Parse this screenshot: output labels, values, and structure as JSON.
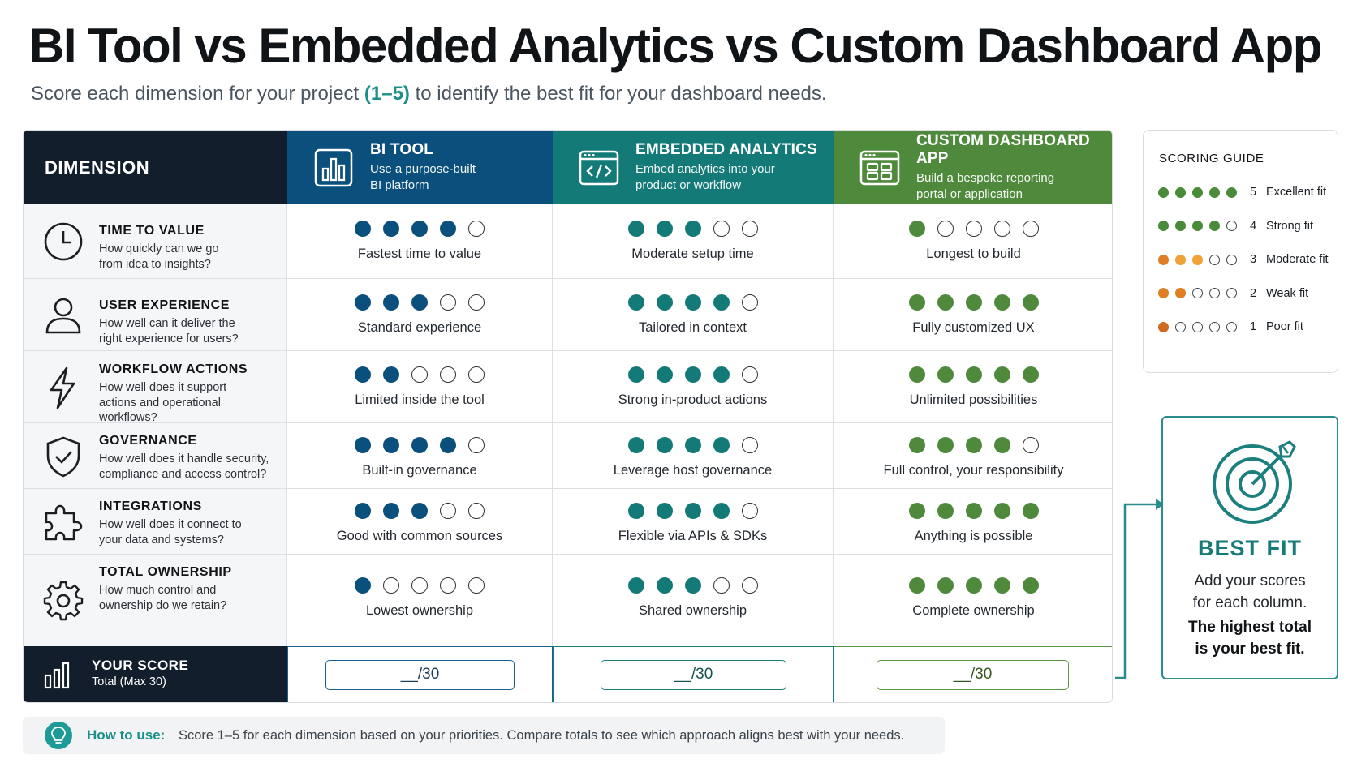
{
  "title": "BI Tool vs Embedded Analytics vs Custom Dashboard App",
  "subtitle": {
    "before": "Score each dimension for your project ",
    "accent": "(1–5)",
    "after": " to identify the best fit for your dashboard needs."
  },
  "colors": {
    "dark": "#121e2c",
    "bi": "#0b4f7c",
    "embedded": "#137a77",
    "custom": "#4f8a3c",
    "accent": "#1b8f8a",
    "guide_green": "#4a8b3a",
    "guide_orange_light": "#f0a238",
    "guide_orange": "#de7f26",
    "guide_orange_dark": "#cf6a1e"
  },
  "header": {
    "dimension": "DIMENSION",
    "bi": {
      "title": "BI TOOL",
      "desc_1": "Use a purpose-built",
      "desc_2": "BI platform",
      "icon": "bar-chart-icon"
    },
    "embedded": {
      "title": "EMBEDDED ANALYTICS",
      "desc_1": "Embed analytics into your",
      "desc_2": "product or workflow",
      "icon": "code-window-icon"
    },
    "custom": {
      "title": "CUSTOM DASHBOARD APP",
      "desc_1": "Build a bespoke reporting",
      "desc_2": "portal or application",
      "icon": "dashboard-window-icon"
    }
  },
  "rows": [
    {
      "name": "TIME TO VALUE",
      "q1": "How quickly can we go",
      "q2": "from idea to insights?",
      "q3": "",
      "icon": "clock-icon",
      "bi": {
        "score": 4,
        "label": "Fastest time to value"
      },
      "embedded": {
        "score": 3,
        "label": "Moderate setup time"
      },
      "custom": {
        "score": 1,
        "label": "Longest to build"
      }
    },
    {
      "name": "USER EXPERIENCE",
      "q1": "How well can it deliver the",
      "q2": "right experience for users?",
      "q3": "",
      "icon": "user-icon",
      "bi": {
        "score": 3,
        "label": "Standard experience"
      },
      "embedded": {
        "score": 4,
        "label": "Tailored in context"
      },
      "custom": {
        "score": 5,
        "label": "Fully customized UX"
      }
    },
    {
      "name": "WORKFLOW ACTIONS",
      "q1": "How well does it support",
      "q2": "actions and operational",
      "q3": "workflows?",
      "icon": "lightning-icon",
      "bi": {
        "score": 2,
        "label": "Limited inside the tool"
      },
      "embedded": {
        "score": 4,
        "label": "Strong in-product actions"
      },
      "custom": {
        "score": 5,
        "label": "Unlimited possibilities"
      }
    },
    {
      "name": "GOVERNANCE",
      "q1": "How well does it handle security,",
      "q2": "compliance and access control?",
      "q3": "",
      "icon": "shield-check-icon",
      "bi": {
        "score": 4,
        "label": "Built-in governance"
      },
      "embedded": {
        "score": 4,
        "label": "Leverage host governance"
      },
      "custom": {
        "score": 4,
        "label": "Full control, your responsibility"
      }
    },
    {
      "name": "INTEGRATIONS",
      "q1": "How well does it connect to",
      "q2": "your data and systems?",
      "q3": "",
      "icon": "puzzle-icon",
      "bi": {
        "score": 3,
        "label": "Good with common sources"
      },
      "embedded": {
        "score": 4,
        "label": "Flexible via APIs & SDKs"
      },
      "custom": {
        "score": 5,
        "label": "Anything is possible"
      }
    },
    {
      "name": "TOTAL OWNERSHIP",
      "q1": "How much control and",
      "q2": "ownership do we retain?",
      "q3": "",
      "icon": "gear-icon",
      "bi": {
        "score": 1,
        "label": "Lowest ownership"
      },
      "embedded": {
        "score": 3,
        "label": "Shared ownership"
      },
      "custom": {
        "score": 5,
        "label": "Complete ownership"
      }
    }
  ],
  "score_row": {
    "title": "YOUR SCORE",
    "subtitle": "Total (Max 30)",
    "icon": "bar-chart-icon",
    "bi": "__/30",
    "embedded": "__/30",
    "custom": "__/30"
  },
  "guide": {
    "title": "SCORING GUIDE",
    "levels": [
      {
        "score": 5,
        "label": "Excellent fit",
        "color": "#4a8b3a"
      },
      {
        "score": 4,
        "label": "Strong fit",
        "color": "#4a8b3a"
      },
      {
        "score": 3,
        "label": "Moderate fit",
        "color": "#f0a238"
      },
      {
        "score": 2,
        "label": "Weak fit",
        "color": "#de7f26"
      },
      {
        "score": 1,
        "label": "Poor fit",
        "color": "#cf6a1e"
      }
    ]
  },
  "best_fit": {
    "title": "BEST FIT",
    "line1": "Add your scores",
    "line2": "for each column.",
    "line3": "The highest total",
    "line4": "is your best fit.",
    "icon": "target-icon"
  },
  "how_to": {
    "label": "How to use:",
    "text": "Score 1–5 for each dimension based on your priorities. Compare totals to see which approach aligns best with your needs.",
    "icon": "lightbulb-icon"
  }
}
